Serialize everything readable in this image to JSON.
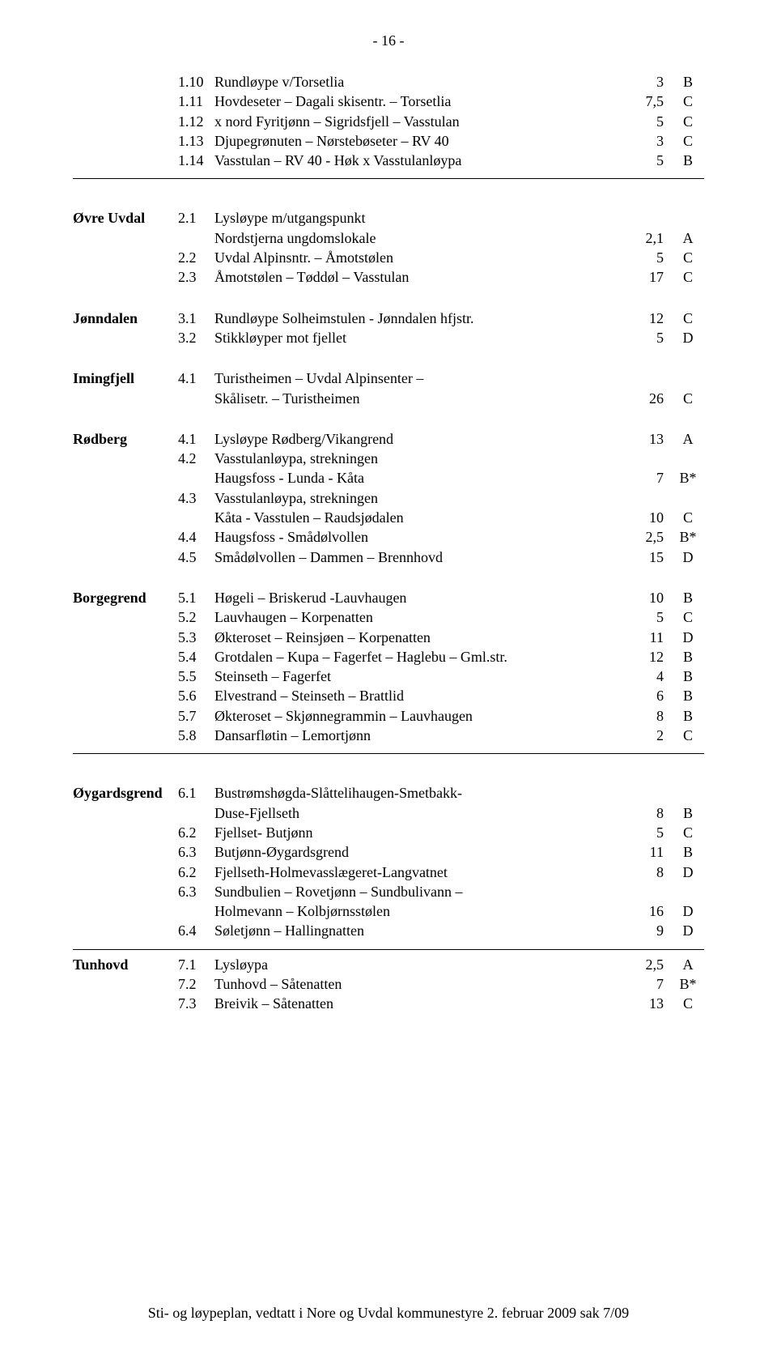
{
  "page_number": "- 16 -",
  "sections": [
    {
      "head": "",
      "rows": [
        {
          "num": "1.10",
          "desc": "Rundløype v/Torsetlia",
          "val": "3",
          "grade": "B"
        },
        {
          "num": "1.11",
          "desc": "Hovdeseter – Dagali skisentr. – Torsetlia",
          "val": "7,5",
          "grade": "C"
        },
        {
          "num": "1.12",
          "desc": "x nord Fyritjønn – Sigridsfjell – Vasstulan",
          "val": "5",
          "grade": "C"
        },
        {
          "num": "1.13",
          "desc": "Djupegrønuten – Nørstebøseter – RV 40",
          "val": "3",
          "grade": "C"
        },
        {
          "num": "1.14",
          "desc": "Vasstulan – RV 40 - Høk x Vasstulanløypa",
          "val": "5",
          "grade": "B"
        }
      ],
      "hr_after": true
    },
    {
      "head": "Øvre Uvdal",
      "rows": [
        {
          "num": "2.1",
          "desc": "Lysløype m/utgangspunkt",
          "val": "",
          "grade": ""
        },
        {
          "num": "",
          "desc": "Nordstjerna ungdomslokale",
          "val": "2,1",
          "grade": "A"
        },
        {
          "num": "2.2",
          "desc": "Uvdal Alpinsntr. – Åmotstølen",
          "val": "5",
          "grade": "C"
        },
        {
          "num": "2.3",
          "desc": "Åmotstølen – Tøddøl – Vasstulan",
          "val": "17",
          "grade": "C"
        }
      ]
    },
    {
      "head": "Jønndalen",
      "rows": [
        {
          "num": "3.1",
          "desc": "Rundløype Solheimstulen - Jønndalen hfjstr.",
          "val": "12",
          "grade": "C"
        },
        {
          "num": "3.2",
          "desc": "Stikkløyper mot fjellet",
          "val": "5",
          "grade": "D"
        }
      ]
    },
    {
      "head": "Imingfjell",
      "rows": [
        {
          "num": "4.1",
          "desc": "Turistheimen – Uvdal Alpinsenter –",
          "val": "",
          "grade": ""
        },
        {
          "num": "",
          "desc": "Skålisetr. – Turistheimen",
          "val": "26",
          "grade": "C"
        }
      ]
    },
    {
      "head": "Rødberg",
      "rows": [
        {
          "num": "4.1",
          "desc": "Lysløype Rødberg/Vikangrend",
          "val": "13",
          "grade": "A"
        },
        {
          "num": "4.2",
          "desc": "Vasstulanløypa, strekningen",
          "val": "",
          "grade": ""
        },
        {
          "num": "",
          "desc": "Haugsfoss - Lunda - Kåta",
          "val": "7",
          "grade": "B*"
        },
        {
          "num": "4.3",
          "desc": "Vasstulanløypa, strekningen",
          "val": "",
          "grade": ""
        },
        {
          "num": "",
          "desc": "Kåta - Vasstulen – Raudsjødalen",
          "val": "10",
          "grade": "C"
        },
        {
          "num": "4.4",
          "desc": "Haugsfoss - Smådølvollen",
          "val": "2,5",
          "grade": "B*"
        },
        {
          "num": "4.5",
          "desc": "Smådølvollen – Dammen – Brennhovd",
          "val": "15",
          "grade": "D"
        }
      ]
    },
    {
      "head": "Borgegrend",
      "rows": [
        {
          "num": "5.1",
          "desc": "Høgeli – Briskerud -Lauvhaugen",
          "val": "10",
          "grade": "B"
        },
        {
          "num": "5.2",
          "desc": "Lauvhaugen – Korpenatten",
          "val": "5",
          "grade": "C"
        },
        {
          "num": "5.3",
          "desc": "Økteroset – Reinsjøen – Korpenatten",
          "val": "11",
          "grade": "D"
        },
        {
          "num": "5.4",
          "desc": "Grotdalen – Kupa – Fagerfet – Haglebu – Gml.str.",
          "val": "12",
          "grade": "B"
        },
        {
          "num": "5.5",
          "desc": "Steinseth – Fagerfet",
          "val": "4",
          "grade": "B"
        },
        {
          "num": "5.6",
          "desc": "Elvestrand – Steinseth – Brattlid",
          "val": "6",
          "grade": "B"
        },
        {
          "num": "5.7",
          "desc": "Økteroset – Skjønnegrammin – Lauvhaugen",
          "val": "8",
          "grade": "B"
        },
        {
          "num": "5.8",
          "desc": "Dansarfløtin – Lemortjønn",
          "val": "2",
          "grade": "C"
        }
      ],
      "hr_after": true
    },
    {
      "head": "Øygardsgrend",
      "rows": [
        {
          "num": "6.1",
          "desc": "Bustrømshøgda-Slåttelihaugen-Smetbakk-",
          "val": "",
          "grade": ""
        },
        {
          "num": "",
          "desc": "Duse-Fjellseth",
          "val": "8",
          "grade": "B"
        },
        {
          "num": "6.2",
          "desc": "Fjellset- Butjønn",
          "val": "5",
          "grade": "C"
        },
        {
          "num": "6.3",
          "desc": "Butjønn-Øygardsgrend",
          "val": "11",
          "grade": "B"
        },
        {
          "num": "6.2",
          "desc": "Fjellseth-Holmevasslægeret-Langvatnet",
          "val": "8",
          "grade": "D"
        },
        {
          "num": "6.3",
          "desc": "Sundbulien – Rovetjønn – Sundbulivann –",
          "val": "",
          "grade": ""
        },
        {
          "num": "",
          "desc": "Holmevann – Kolbjørnsstølen",
          "val": "16",
          "grade": "D"
        },
        {
          "num": "6.4",
          "desc": "Søletjønn – Hallingnatten",
          "val": "9",
          "grade": "D"
        }
      ],
      "hr_after_short": true
    },
    {
      "head": "Tunhovd",
      "rows": [
        {
          "num": "7.1",
          "desc": "Lysløypa",
          "val": "2,5",
          "grade": "A"
        },
        {
          "num": "7.2",
          "desc": "Tunhovd – Såtenatten",
          "val": "7",
          "grade": "B*"
        },
        {
          "num": "7.3",
          "desc": "Breivik – Såtenatten",
          "val": "13",
          "grade": "C"
        }
      ]
    }
  ],
  "footer": "Sti- og løypeplan, vedtatt i Nore og Uvdal kommunestyre 2. februar 2009 sak 7/09"
}
